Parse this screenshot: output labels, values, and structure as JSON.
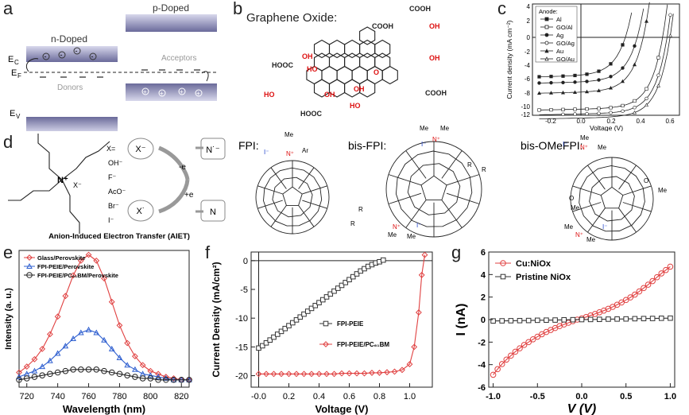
{
  "panel_labels": {
    "a": "a",
    "b": "b",
    "c": "c",
    "d": "d",
    "e": "e",
    "f": "f",
    "g": "g"
  },
  "panel_a": {
    "n_doped": "n-Doped",
    "p_doped": "p-Doped",
    "ec": "E",
    "ec_sub": "C",
    "ef": "E",
    "ef_sub": "F",
    "ev": "E",
    "ev_sub": "V",
    "acceptors": "Acceptors",
    "donors": "Donors"
  },
  "panel_b": {
    "title": "Graphene Oxide:",
    "groups": [
      "COOH",
      "COOH",
      "OH",
      "OH",
      "HOOC",
      "HO",
      "O",
      "OH",
      "OH",
      "OH",
      "HO",
      "HO",
      "HOOC",
      "COOH"
    ]
  },
  "panel_c": {
    "legend_title": "Anode:",
    "legend": [
      "Al",
      "GO/Al",
      "Ag",
      "GO/Ag",
      "Au",
      "GO/Au"
    ],
    "ylabel": "Current density (mA cm⁻²)",
    "xlabel": "Voltage (V)",
    "xticks": [
      "-0.2",
      "0.0",
      "0.2",
      "0.4",
      "0.6"
    ],
    "yticks": [
      "4",
      "2",
      "0",
      "-2",
      "-4",
      "-6",
      "-8",
      "-10",
      "-12"
    ]
  },
  "panel_d": {
    "x_eq": "X=",
    "anions": [
      "OH⁻",
      "F⁻",
      "AcO⁻",
      "Br⁻",
      "I⁻"
    ],
    "xminus": "X⁻",
    "xdot": "X˙",
    "n_rad": "N˙⁻",
    "n": "N",
    "minus_e": "-e",
    "plus_e": "+e",
    "n_plus": "N⁺",
    "x_counter": "X⁻",
    "caption": "Anion-Induced Electron Transfer (AIET)"
  },
  "panel_fpi": {
    "fpi": "FPI:",
    "bis_fpi": "bis-FPI:",
    "bis_omefpi": "bis-OMeFPI:",
    "iodide": "I⁻",
    "me": "Me",
    "ar": "Ar",
    "r": "R",
    "n_plus": "N⁺",
    "ome": "O",
    "me_lower": "Me"
  },
  "chart_data": [
    {
      "panel": "e",
      "type": "line",
      "xlabel": "Wavelength (nm)",
      "ylabel": "Intensity (a. u.)",
      "xlim": [
        715,
        825
      ],
      "xticks": [
        720,
        740,
        760,
        780,
        800,
        820
      ],
      "series": [
        {
          "name": "Glass/Perovskite",
          "color": "#e04040",
          "marker": "diamond",
          "x": [
            715,
            720,
            725,
            730,
            735,
            740,
            745,
            750,
            755,
            760,
            765,
            770,
            775,
            780,
            785,
            790,
            795,
            800,
            805,
            810,
            815,
            820,
            825
          ],
          "y": [
            0.1,
            0.14,
            0.19,
            0.26,
            0.36,
            0.48,
            0.62,
            0.76,
            0.86,
            0.9,
            0.86,
            0.74,
            0.58,
            0.42,
            0.3,
            0.21,
            0.15,
            0.11,
            0.09,
            0.07,
            0.06,
            0.05,
            0.05
          ]
        },
        {
          "name": "FPI-PEIE/Perovskite",
          "color": "#3060d0",
          "marker": "triangle",
          "x": [
            715,
            720,
            725,
            730,
            735,
            740,
            745,
            750,
            755,
            760,
            765,
            770,
            775,
            780,
            785,
            790,
            795,
            800,
            805,
            810,
            815,
            820,
            825
          ],
          "y": [
            0.07,
            0.09,
            0.11,
            0.14,
            0.18,
            0.23,
            0.28,
            0.33,
            0.37,
            0.39,
            0.37,
            0.32,
            0.26,
            0.2,
            0.15,
            0.12,
            0.09,
            0.08,
            0.07,
            0.06,
            0.05,
            0.05,
            0.05
          ]
        },
        {
          "name": "FPI-PEIE/PC₆₁BM/Perovskite",
          "color": "#222222",
          "marker": "circle",
          "x": [
            715,
            720,
            725,
            730,
            735,
            740,
            745,
            750,
            755,
            760,
            765,
            770,
            775,
            780,
            785,
            790,
            795,
            800,
            805,
            810,
            815,
            820,
            825
          ],
          "y": [
            0.05,
            0.06,
            0.07,
            0.08,
            0.09,
            0.1,
            0.11,
            0.12,
            0.12,
            0.12,
            0.12,
            0.11,
            0.1,
            0.09,
            0.08,
            0.07,
            0.06,
            0.06,
            0.05,
            0.05,
            0.05,
            0.05,
            0.05
          ]
        }
      ]
    },
    {
      "panel": "f",
      "type": "line",
      "xlabel": "Voltage (V)",
      "ylabel": "Current Density (mA/cm²)",
      "xlim": [
        -0.05,
        1.15
      ],
      "ylim": [
        -22,
        1.5
      ],
      "xticks": [
        "-0.0",
        "0.2",
        "0.4",
        "0.6",
        "0.8",
        "1.0"
      ],
      "yticks": [
        0,
        -5,
        -10,
        -15,
        -20
      ],
      "series": [
        {
          "name": "FPI-PEIE",
          "color": "#333333",
          "marker": "square",
          "x": [
            0,
            0.025,
            0.05,
            0.075,
            0.1,
            0.125,
            0.15,
            0.175,
            0.2,
            0.225,
            0.25,
            0.275,
            0.3,
            0.325,
            0.35,
            0.375,
            0.4,
            0.425,
            0.45,
            0.475,
            0.5,
            0.525,
            0.55,
            0.575,
            0.6,
            0.625,
            0.65,
            0.675,
            0.7,
            0.725,
            0.75,
            0.775,
            0.8,
            0.825
          ],
          "y": [
            -15.2,
            -14.8,
            -14.3,
            -13.8,
            -13.3,
            -12.8,
            -12.3,
            -11.8,
            -11.3,
            -10.8,
            -10.3,
            -9.8,
            -9.3,
            -8.8,
            -8.3,
            -7.8,
            -7.3,
            -6.8,
            -6.3,
            -5.8,
            -5.3,
            -4.8,
            -4.3,
            -3.8,
            -3.3,
            -2.8,
            -2.3,
            -1.8,
            -1.4,
            -1.0,
            -0.7,
            -0.4,
            -0.2,
            0.1
          ]
        },
        {
          "name": "FPI-PEIE/PC₆₁BM",
          "color": "#e04040",
          "marker": "diamond",
          "x": [
            0,
            0.05,
            0.1,
            0.15,
            0.2,
            0.25,
            0.3,
            0.35,
            0.4,
            0.45,
            0.5,
            0.55,
            0.6,
            0.65,
            0.7,
            0.75,
            0.8,
            0.85,
            0.9,
            0.95,
            1.0,
            1.03,
            1.06,
            1.08,
            1.1
          ],
          "y": [
            -19.7,
            -19.7,
            -19.7,
            -19.7,
            -19.7,
            -19.7,
            -19.7,
            -19.7,
            -19.7,
            -19.7,
            -19.7,
            -19.6,
            -19.6,
            -19.6,
            -19.6,
            -19.5,
            -19.5,
            -19.4,
            -19.3,
            -19.0,
            -18.0,
            -15.0,
            -9.0,
            -2.5,
            1.0
          ]
        }
      ]
    },
    {
      "panel": "g",
      "type": "line",
      "xlabel": "V (V)",
      "ylabel": "I (nA)",
      "xlim": [
        -1.05,
        1.05
      ],
      "ylim": [
        -6,
        6
      ],
      "xticks": [
        "-1.0",
        "-0.5",
        "0.0",
        "0.5",
        "1.0"
      ],
      "yticks": [
        6,
        4,
        2,
        0,
        -2,
        -4,
        -6
      ],
      "series": [
        {
          "name": "Cu:NiOx",
          "color": "#e04040",
          "marker": "circle",
          "x": [
            -1.0,
            -0.95,
            -0.9,
            -0.85,
            -0.8,
            -0.75,
            -0.7,
            -0.65,
            -0.6,
            -0.55,
            -0.5,
            -0.45,
            -0.4,
            -0.35,
            -0.3,
            -0.25,
            -0.2,
            -0.15,
            -0.1,
            -0.05,
            0,
            0.05,
            0.1,
            0.15,
            0.2,
            0.25,
            0.3,
            0.35,
            0.4,
            0.45,
            0.5,
            0.55,
            0.6,
            0.65,
            0.7,
            0.75,
            0.8,
            0.85,
            0.9,
            0.95,
            1.0
          ],
          "y": [
            -4.9,
            -4.4,
            -3.95,
            -3.55,
            -3.2,
            -2.85,
            -2.55,
            -2.25,
            -2.0,
            -1.75,
            -1.52,
            -1.3,
            -1.1,
            -0.92,
            -0.75,
            -0.58,
            -0.43,
            -0.28,
            -0.14,
            0.0,
            0.1,
            0.23,
            0.37,
            0.5,
            0.65,
            0.8,
            0.96,
            1.13,
            1.32,
            1.52,
            1.74,
            1.97,
            2.22,
            2.5,
            2.8,
            3.1,
            3.42,
            3.76,
            4.1,
            4.4,
            4.7
          ]
        },
        {
          "name": "Pristine NiOx",
          "color": "#333333",
          "marker": "square",
          "x": [
            -1.0,
            -0.9,
            -0.8,
            -0.7,
            -0.6,
            -0.5,
            -0.4,
            -0.3,
            -0.2,
            -0.1,
            0,
            0.1,
            0.2,
            0.3,
            0.4,
            0.5,
            0.6,
            0.7,
            0.8,
            0.9,
            1.0
          ],
          "y": [
            -0.12,
            -0.11,
            -0.1,
            -0.09,
            -0.08,
            -0.06,
            -0.05,
            -0.04,
            -0.02,
            -0.01,
            0,
            0.01,
            0.02,
            0.04,
            0.05,
            0.06,
            0.08,
            0.09,
            0.1,
            0.12,
            0.13
          ]
        }
      ]
    }
  ]
}
